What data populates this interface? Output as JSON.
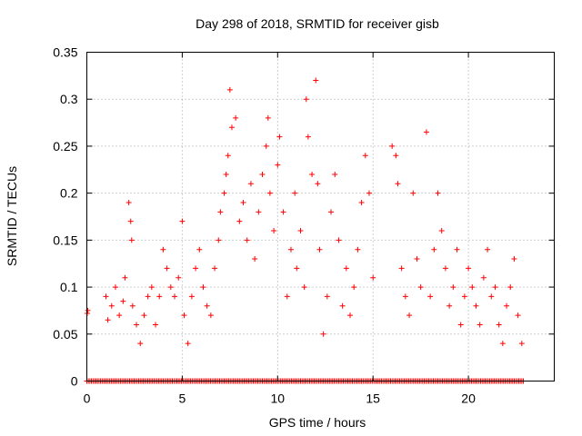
{
  "chart_data": {
    "type": "scatter",
    "title": "Day 298 of 2018, SRMTID for receiver gisb",
    "xlabel": "GPS time / hours",
    "ylabel": "SRMTID / TECUs",
    "xlim": [
      0,
      24.5
    ],
    "ylim": [
      0,
      0.35
    ],
    "x_ticks": [
      0,
      5,
      10,
      15,
      20
    ],
    "x_tick_labels": [
      "0",
      "5",
      "10",
      "15",
      "20"
    ],
    "y_ticks": [
      0,
      0.05,
      0.1,
      0.15,
      0.2,
      0.25,
      0.3,
      0.35
    ],
    "y_tick_labels": [
      "0",
      "0.05",
      "0.1",
      "0.15",
      "0.2",
      "0.25",
      "0.3",
      "0.35"
    ],
    "grid": true,
    "marker": "+",
    "series": [
      {
        "name": "SRMTID",
        "color": "#ff0000",
        "x": [
          0.02,
          0.05,
          1.0,
          1.1,
          1.3,
          1.5,
          1.7,
          1.9,
          2.0,
          2.2,
          2.3,
          2.35,
          2.4,
          2.6,
          2.8,
          3.0,
          3.2,
          3.4,
          3.6,
          3.8,
          4.0,
          4.2,
          4.4,
          4.6,
          4.8,
          5.0,
          5.1,
          5.3,
          5.5,
          5.7,
          5.9,
          6.1,
          6.3,
          6.5,
          6.7,
          6.9,
          7.0,
          7.2,
          7.3,
          7.4,
          7.5,
          7.6,
          7.8,
          8.0,
          8.2,
          8.4,
          8.6,
          8.8,
          9.0,
          9.2,
          9.4,
          9.5,
          9.6,
          9.8,
          10.0,
          10.1,
          10.3,
          10.5,
          10.7,
          10.9,
          11.0,
          11.2,
          11.4,
          11.5,
          11.6,
          11.8,
          12.0,
          12.1,
          12.2,
          12.4,
          12.6,
          12.8,
          13.0,
          13.2,
          13.4,
          13.6,
          13.8,
          14.0,
          14.2,
          14.4,
          14.6,
          14.8,
          15.0,
          16.0,
          16.2,
          16.3,
          16.5,
          16.7,
          16.9,
          17.1,
          17.3,
          17.5,
          17.8,
          18.0,
          18.2,
          18.4,
          18.6,
          18.8,
          19.0,
          19.2,
          19.4,
          19.6,
          19.8,
          20.0,
          20.2,
          20.4,
          20.6,
          20.8,
          21.0,
          21.2,
          21.4,
          21.6,
          21.8,
          22.0,
          22.2,
          22.4,
          22.6,
          22.8
        ],
        "values": [
          0.072,
          0.075,
          0.09,
          0.065,
          0.08,
          0.1,
          0.07,
          0.085,
          0.11,
          0.19,
          0.17,
          0.15,
          0.08,
          0.06,
          0.04,
          0.07,
          0.09,
          0.1,
          0.06,
          0.09,
          0.14,
          0.12,
          0.1,
          0.09,
          0.11,
          0.17,
          0.07,
          0.04,
          0.09,
          0.12,
          0.14,
          0.1,
          0.08,
          0.07,
          0.12,
          0.15,
          0.18,
          0.2,
          0.22,
          0.24,
          0.31,
          0.27,
          0.28,
          0.17,
          0.19,
          0.15,
          0.21,
          0.13,
          0.18,
          0.22,
          0.25,
          0.28,
          0.2,
          0.16,
          0.23,
          0.26,
          0.18,
          0.09,
          0.14,
          0.2,
          0.12,
          0.16,
          0.1,
          0.3,
          0.26,
          0.22,
          0.32,
          0.21,
          0.14,
          0.05,
          0.09,
          0.18,
          0.22,
          0.15,
          0.08,
          0.12,
          0.07,
          0.1,
          0.14,
          0.19,
          0.24,
          0.2,
          0.11,
          0.25,
          0.24,
          0.21,
          0.12,
          0.09,
          0.07,
          0.2,
          0.13,
          0.1,
          0.265,
          0.09,
          0.14,
          0.2,
          0.16,
          0.12,
          0.08,
          0.1,
          0.14,
          0.06,
          0.09,
          0.12,
          0.1,
          0.08,
          0.06,
          0.11,
          0.14,
          0.09,
          0.1,
          0.06,
          0.04,
          0.08,
          0.1,
          0.13,
          0.07,
          0.04
        ]
      }
    ],
    "zero_band": {
      "x_start": 0.0,
      "x_end": 22.9,
      "value": 0.0
    }
  }
}
